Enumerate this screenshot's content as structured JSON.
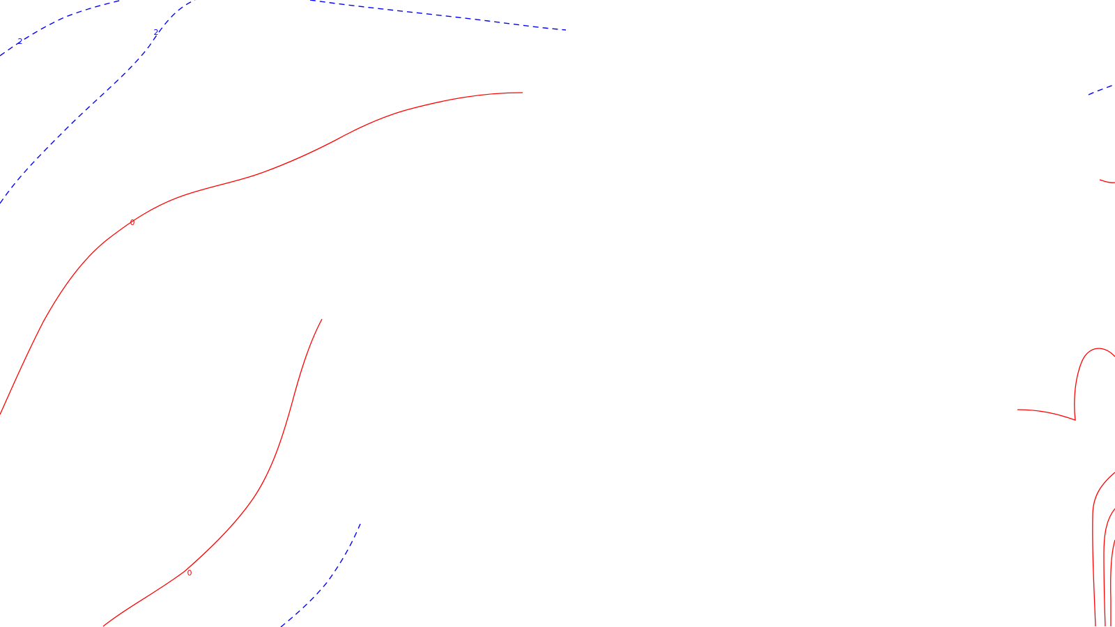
{
  "colors": {
    "positive_contour": "#0000ff",
    "zero_contour": "#ff0000",
    "background": "#ffffff"
  },
  "contour_styles": {
    "positive": "dashed",
    "zero": "solid"
  },
  "contour_labels": {
    "blue_upper_left_a": "2",
    "blue_upper_left_b": "2",
    "red_upper": "0",
    "red_lower": "0"
  }
}
